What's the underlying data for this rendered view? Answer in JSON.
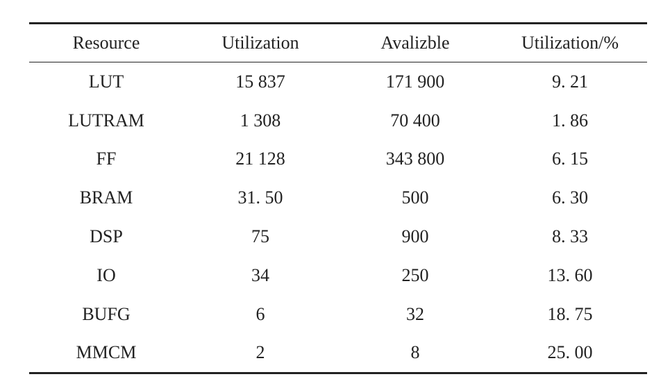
{
  "table": {
    "header": [
      "Resource",
      "Utilization",
      "Avalizble",
      "Utilization/%"
    ],
    "rows": [
      [
        "LUT",
        "15 837",
        "171 900",
        "9. 21"
      ],
      [
        "LUTRAM",
        "1 308",
        "70 400",
        "1. 86"
      ],
      [
        "FF",
        "21 128",
        "343 800",
        "6. 15"
      ],
      [
        "BRAM",
        "31. 50",
        "500",
        "6. 30"
      ],
      [
        "DSP",
        "75",
        "900",
        "8. 33"
      ],
      [
        "IO",
        "34",
        "250",
        "13. 60"
      ],
      [
        "BUFG",
        "6",
        "32",
        "18. 75"
      ],
      [
        "MMCM",
        "2",
        "8",
        "25. 00"
      ]
    ]
  }
}
